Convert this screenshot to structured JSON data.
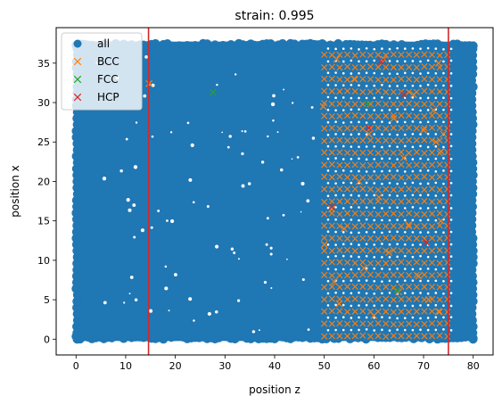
{
  "chart_data": {
    "type": "scatter",
    "title": "strain: 0.995",
    "xlabel": "position z",
    "ylabel": "position x",
    "xlim": [
      -4,
      84
    ],
    "ylim": [
      -2,
      39.5
    ],
    "xticks": [
      0,
      10,
      20,
      30,
      40,
      50,
      60,
      70,
      80
    ],
    "yticks": [
      0,
      5,
      10,
      15,
      20,
      25,
      30,
      35
    ],
    "grid": false,
    "legend_position": "upper-left",
    "vertical_lines": [
      {
        "x": 14.6,
        "color": "#d62728"
      },
      {
        "x": 75.0,
        "color": "#d62728"
      }
    ],
    "series": [
      {
        "name": "all",
        "marker": "circle",
        "color": "#1f77b4",
        "x_range": [
          0,
          80
        ],
        "y_range": [
          0,
          37.5
        ],
        "note_density": "dense throughout; ordered lattice pattern for z approx 50-75"
      },
      {
        "name": "BCC",
        "marker": "x",
        "color": "#ff7f0e",
        "points": [
          [
            14.7,
            32.4
          ],
          [
            49.8,
            29.5
          ],
          [
            50.0,
            12.0
          ],
          [
            51.5,
            16.5
          ],
          [
            52.0,
            7.3
          ],
          [
            52.5,
            35.5
          ],
          [
            53.0,
            4.5
          ],
          [
            54.0,
            14.0
          ],
          [
            56.0,
            33.0
          ],
          [
            57.0,
            20.0
          ],
          [
            58.0,
            9.0
          ],
          [
            59.0,
            26.0
          ],
          [
            60.0,
            3.0
          ],
          [
            61.0,
            18.0
          ],
          [
            62.0,
            35.5
          ],
          [
            63.0,
            11.0
          ],
          [
            64.0,
            28.0
          ],
          [
            65.0,
            6.0
          ],
          [
            66.0,
            23.0
          ],
          [
            67.0,
            14.5
          ],
          [
            68.0,
            31.0
          ],
          [
            69.0,
            8.0
          ],
          [
            70.0,
            26.5
          ],
          [
            71.0,
            5.0
          ],
          [
            72.0,
            29.0
          ],
          [
            72.5,
            25.0
          ],
          [
            73.0,
            3.5
          ],
          [
            73.5,
            23.8
          ],
          [
            74.0,
            26.0
          ],
          [
            73.5,
            15.0
          ],
          [
            73.0,
            35.0
          ]
        ]
      },
      {
        "name": "FCC",
        "marker": "x",
        "color": "#2ca02c",
        "points": [
          [
            27.6,
            31.3
          ],
          [
            58.7,
            29.8
          ],
          [
            64.7,
            6.2
          ]
        ]
      },
      {
        "name": "HCP",
        "marker": "x",
        "color": "#d62728",
        "points": [
          [
            59.0,
            26.8
          ],
          [
            61.5,
            35.2
          ],
          [
            66.0,
            31.0
          ],
          [
            70.5,
            12.3
          ],
          [
            51.5,
            16.8
          ]
        ]
      }
    ]
  }
}
